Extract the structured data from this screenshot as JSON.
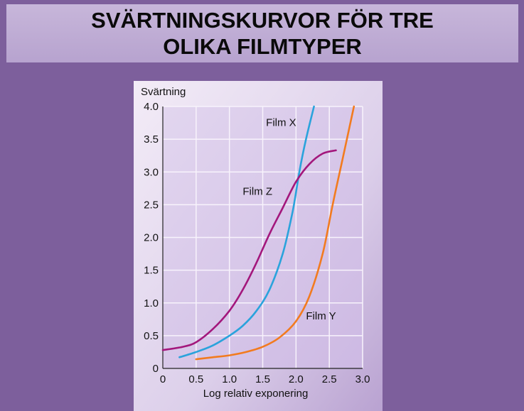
{
  "slide": {
    "title_line1": "SVÄRTNINGSKURVOR FÖR TRE",
    "title_line2": "OLIKA FILMTYPER"
  },
  "chart_data": {
    "type": "line",
    "ylabel": "Svärtning",
    "xlabel": "Log relativ exponering",
    "xlim": [
      0,
      3.0
    ],
    "ylim": [
      0,
      4.0
    ],
    "x_ticks": [
      "0",
      "0.5",
      "1.0",
      "1.5",
      "2.0",
      "2.5",
      "3.0"
    ],
    "y_ticks": [
      "0",
      "0.5",
      "1.0",
      "1.5",
      "2.0",
      "2.5",
      "3.0",
      "3.5",
      "4.0"
    ],
    "grid": true,
    "series": [
      {
        "name": "Film X",
        "color": "#2aa3dc",
        "points": [
          [
            0.25,
            0.17
          ],
          [
            0.5,
            0.25
          ],
          [
            0.75,
            0.35
          ],
          [
            1.0,
            0.5
          ],
          [
            1.2,
            0.65
          ],
          [
            1.4,
            0.87
          ],
          [
            1.6,
            1.2
          ],
          [
            1.8,
            1.75
          ],
          [
            1.95,
            2.4
          ],
          [
            2.05,
            3.0
          ],
          [
            2.15,
            3.5
          ],
          [
            2.27,
            4.0
          ]
        ]
      },
      {
        "name": "Film Z",
        "color": "#a3177c",
        "points": [
          [
            0.0,
            0.28
          ],
          [
            0.3,
            0.33
          ],
          [
            0.5,
            0.4
          ],
          [
            0.75,
            0.6
          ],
          [
            1.0,
            0.88
          ],
          [
            1.2,
            1.2
          ],
          [
            1.4,
            1.6
          ],
          [
            1.6,
            2.05
          ],
          [
            1.8,
            2.45
          ],
          [
            2.0,
            2.85
          ],
          [
            2.2,
            3.12
          ],
          [
            2.4,
            3.28
          ],
          [
            2.6,
            3.33
          ]
        ]
      },
      {
        "name": "Film Y",
        "color": "#f27b1f",
        "points": [
          [
            0.5,
            0.14
          ],
          [
            0.75,
            0.17
          ],
          [
            1.0,
            0.2
          ],
          [
            1.25,
            0.25
          ],
          [
            1.5,
            0.33
          ],
          [
            1.75,
            0.47
          ],
          [
            2.0,
            0.72
          ],
          [
            2.2,
            1.1
          ],
          [
            2.4,
            1.75
          ],
          [
            2.55,
            2.5
          ],
          [
            2.7,
            3.2
          ],
          [
            2.87,
            4.0
          ]
        ]
      }
    ],
    "labels": [
      {
        "text": "Film X",
        "x": 1.55,
        "y": 3.7
      },
      {
        "text": "Film Z",
        "x": 1.2,
        "y": 2.65
      },
      {
        "text": "Film Y",
        "x": 2.15,
        "y": 0.75
      }
    ]
  }
}
